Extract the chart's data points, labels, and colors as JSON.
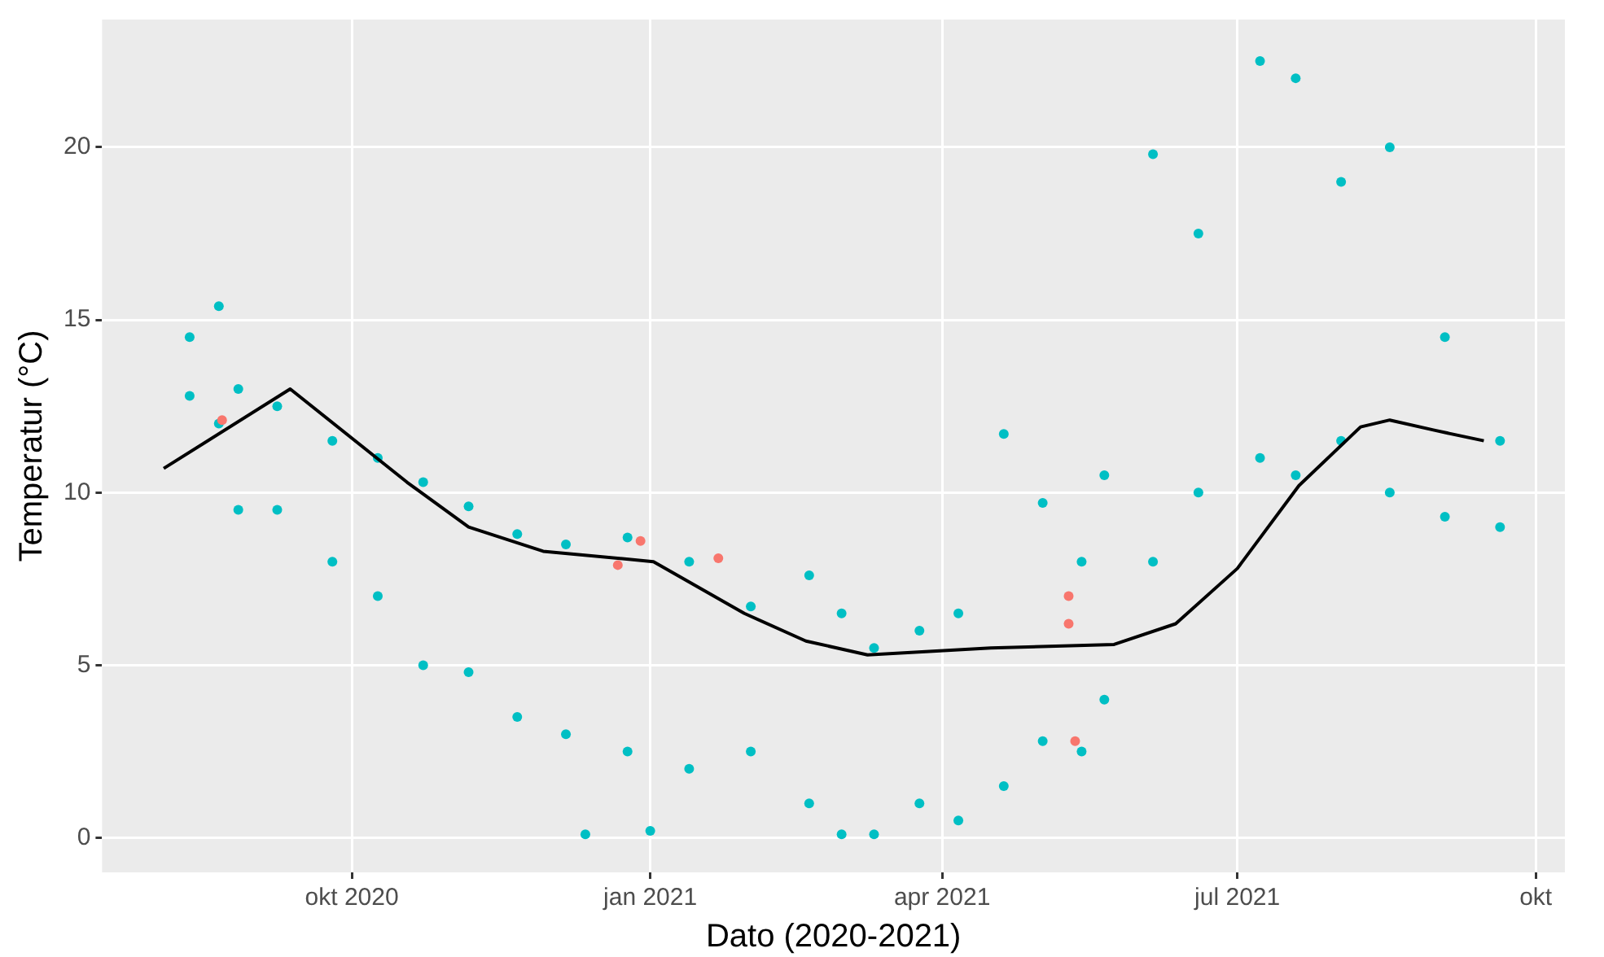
{
  "chart_data": {
    "type": "scatter",
    "xlabel": "Dato (2020-2021)",
    "ylabel": "Temperatur (°C)",
    "xlim": [
      "2020-07-16",
      "2021-10-10"
    ],
    "ylim": [
      -1,
      23.7
    ],
    "xticks": [
      {
        "value": "2020-10-01",
        "label": "okt 2020"
      },
      {
        "value": "2021-01-01",
        "label": "jan 2021"
      },
      {
        "value": "2021-04-01",
        "label": "apr 2021"
      },
      {
        "value": "2021-07-01",
        "label": "jul 2021"
      },
      {
        "value": "2021-10-01",
        "label": "okt"
      }
    ],
    "yticks": [
      0,
      5,
      10,
      15,
      20
    ],
    "grid": true,
    "legend": false,
    "marker": "circle",
    "series": [
      {
        "color": "#00bfc4",
        "x": [
          "2020-08-12",
          "2020-08-12",
          "2020-08-21",
          "2020-08-21",
          "2020-08-27",
          "2020-08-27",
          "2020-09-08",
          "2020-09-08",
          "2020-09-25",
          "2020-09-25",
          "2020-10-09",
          "2020-10-09",
          "2020-10-23",
          "2020-10-23",
          "2020-11-06",
          "2020-11-06",
          "2020-11-21",
          "2020-11-21",
          "2020-12-06",
          "2020-12-06",
          "2020-12-12",
          "2020-12-25",
          "2020-12-25",
          "2021-01-01",
          "2021-01-13",
          "2021-01-13",
          "2021-02-01",
          "2021-02-01",
          "2021-02-19",
          "2021-02-19",
          "2021-03-01",
          "2021-03-01",
          "2021-03-11",
          "2021-03-11",
          "2021-03-25",
          "2021-03-25",
          "2021-04-06",
          "2021-04-06",
          "2021-04-20",
          "2021-04-20",
          "2021-05-02",
          "2021-05-02",
          "2021-05-14",
          "2021-05-14",
          "2021-05-21",
          "2021-05-21",
          "2021-06-05",
          "2021-06-05",
          "2021-06-19",
          "2021-06-19",
          "2021-07-08",
          "2021-07-08",
          "2021-07-19",
          "2021-07-19",
          "2021-08-02",
          "2021-08-02",
          "2021-08-17",
          "2021-08-17",
          "2021-09-03",
          "2021-09-03",
          "2021-09-20",
          "2021-09-20"
        ],
        "values": [
          14.5,
          12.8,
          15.4,
          12.0,
          13.0,
          9.5,
          12.5,
          9.5,
          11.5,
          8.0,
          11.0,
          7.0,
          10.3,
          5.0,
          9.6,
          4.8,
          8.8,
          3.5,
          8.5,
          3.0,
          0.1,
          8.7,
          2.5,
          0.2,
          8.0,
          2.0,
          6.7,
          2.5,
          7.6,
          1.0,
          6.5,
          0.1,
          5.5,
          0.1,
          6.0,
          1.0,
          6.5,
          0.5,
          11.7,
          1.5,
          9.7,
          2.8,
          8.0,
          2.5,
          10.5,
          4.0,
          19.8,
          8.0,
          17.5,
          10.0,
          22.5,
          11.0,
          22.0,
          10.5,
          19.0,
          11.5,
          20.0,
          10.0,
          14.5,
          9.3,
          11.5,
          9.0
        ]
      },
      {
        "color": "#f8766d",
        "x": [
          "2020-08-22",
          "2020-12-29",
          "2020-12-22",
          "2021-01-22",
          "2021-05-10",
          "2021-05-10",
          "2021-05-12"
        ],
        "values": [
          12.1,
          8.6,
          7.9,
          8.1,
          7.0,
          6.2,
          2.8
        ]
      },
      {
        "type": "line",
        "color": "#000000",
        "marker": "none",
        "x": [
          "2020-08-04",
          "2020-09-12",
          "2020-10-18",
          "2020-11-06",
          "2020-11-29",
          "2021-01-02",
          "2021-01-30",
          "2021-02-18",
          "2021-03-09",
          "2021-04-16",
          "2021-05-24",
          "2021-06-12",
          "2021-07-01",
          "2021-07-20",
          "2021-08-08",
          "2021-08-17",
          "2021-08-31",
          "2021-09-15"
        ],
        "values": [
          10.7,
          13.0,
          10.3,
          9.0,
          8.3,
          8.0,
          6.5,
          5.7,
          5.3,
          5.5,
          5.6,
          6.2,
          7.8,
          10.2,
          11.9,
          12.1,
          11.8,
          11.5
        ]
      }
    ]
  }
}
